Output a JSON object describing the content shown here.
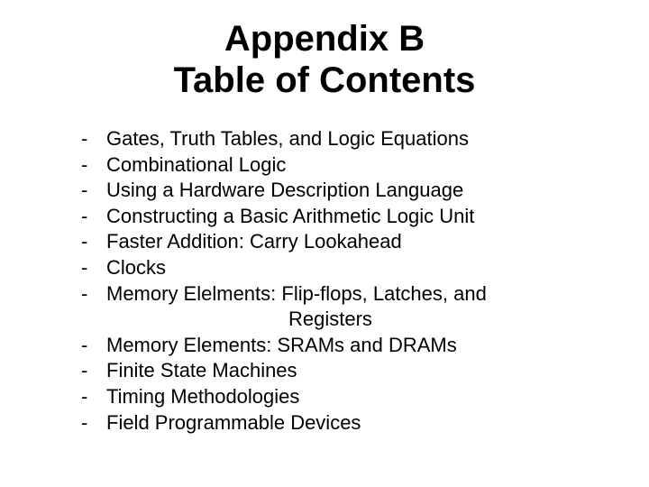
{
  "title": {
    "line1": "Appendix B",
    "line2": "Table of Contents"
  },
  "bullet_char": "-",
  "items": [
    {
      "text": "Gates, Truth Tables, and Logic Equations"
    },
    {
      "text": "Combinational Logic"
    },
    {
      "text": "Using a Hardware Description Language"
    },
    {
      "text": "Constructing a Basic Arithmetic Logic Unit"
    },
    {
      "text": "Faster Addition:   Carry Lookahead"
    },
    {
      "text": "Clocks"
    },
    {
      "text": "Memory Elelments: Flip-flops, Latches, and",
      "continuation": "Registers"
    },
    {
      "text": "Memory Elements: SRAMs and DRAMs"
    },
    {
      "text": "Finite State Machines"
    },
    {
      "text": "Timing Methodologies"
    },
    {
      "text": "Field Programmable Devices"
    }
  ],
  "styling": {
    "background_color": "#ffffff",
    "text_color": "#000000",
    "title_fontsize": 40,
    "item_fontsize": 22,
    "font_family": "Comic Sans MS"
  }
}
